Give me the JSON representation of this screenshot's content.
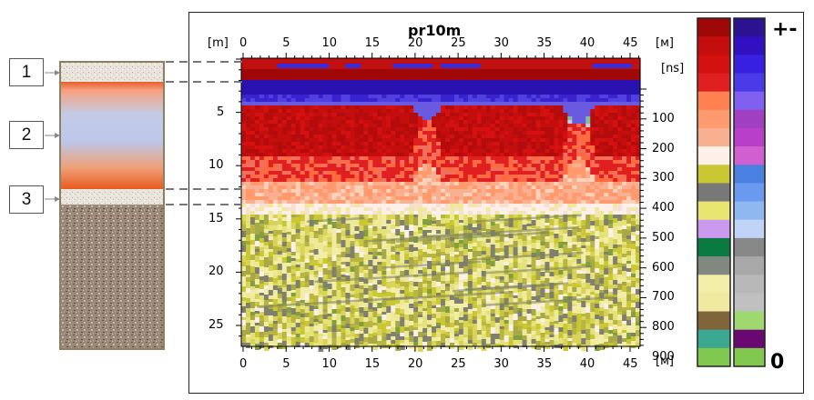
{
  "legend_labels": [
    "1",
    "2",
    "3"
  ],
  "radargram": {
    "title": "pr10m",
    "top_unit_left": "[m]",
    "top_unit_right": "[м]",
    "right_unit": "[ns]",
    "bottom_unit_right": "[м]",
    "x_ticks": [
      "0",
      "5",
      "10",
      "15",
      "20",
      "25",
      "30",
      "35",
      "40",
      "45"
    ],
    "depth_ticks": [
      "5",
      "10",
      "15",
      "20",
      "25"
    ],
    "time_ticks": [
      "100",
      "200",
      "300",
      "400",
      "500",
      "600",
      "700",
      "800",
      "900"
    ]
  },
  "palette": {
    "top_symbol": "+-",
    "bottom_symbol": "0",
    "warm_column": [
      "#a00808",
      "#c40e0e",
      "#d51010",
      "#e02020",
      "#ff8050",
      "#ff9a6e",
      "#f8b090",
      "#fdf0e8",
      "#c9c832",
      "#787878",
      "#e8e670",
      "#cc99f0",
      "#0a7a40",
      "#808880",
      "#f2eda8",
      "#f0eaa0",
      "#80643a",
      "#3aa890",
      "#80c850"
    ],
    "cool_column": [
      "#2a1290",
      "#3010c0",
      "#3820e0",
      "#4a3ae8",
      "#8060f0",
      "#a040c0",
      "#b840c8",
      "#d060d0",
      "#4a80e0",
      "#6a9af0",
      "#90b8f0",
      "#c0d4f8",
      "#888888",
      "#a8a8a8",
      "#b8b8b8",
      "#c0c0c0",
      "#a0d870",
      "#680870",
      "#80c850"
    ]
  }
}
